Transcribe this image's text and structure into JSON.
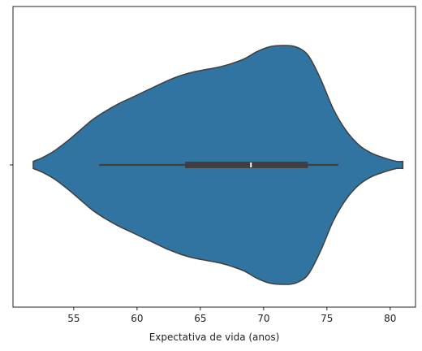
{
  "chart_data": {
    "type": "violin",
    "orientation": "horizontal",
    "title": "",
    "xlabel": "Expectativa de vida (anos)",
    "ylabel": "",
    "xlim": [
      50.2,
      82.0
    ],
    "xticks": [
      55,
      60,
      65,
      70,
      75,
      80
    ],
    "xtick_labels": [
      "55",
      "60",
      "65",
      "70",
      "75",
      "80"
    ],
    "ytick_labels": [
      ""
    ],
    "grid": false,
    "legend": "none",
    "colors": {
      "violin_fill": "#3274a1",
      "violin_edge": "#3f3f3f",
      "box": "#3f3f3f",
      "median": "#ffffff"
    },
    "density_profile": {
      "x": [
        51.8,
        52.5,
        53.5,
        54.5,
        55.5,
        56.5,
        57.5,
        58.5,
        59.5,
        60.5,
        61.5,
        62.5,
        63.5,
        64.5,
        65.5,
        66.5,
        67.5,
        68.5,
        69.5,
        70.5,
        71.5,
        72.5,
        73.5,
        74.5,
        75.5,
        76.5,
        77.5,
        78.5,
        79.5,
        80.5,
        81.0
      ],
      "relative_width": [
        0.03,
        0.06,
        0.12,
        0.2,
        0.29,
        0.38,
        0.45,
        0.51,
        0.56,
        0.61,
        0.66,
        0.71,
        0.75,
        0.78,
        0.8,
        0.82,
        0.85,
        0.89,
        0.95,
        0.99,
        1.0,
        0.99,
        0.92,
        0.72,
        0.47,
        0.29,
        0.17,
        0.1,
        0.06,
        0.03,
        0.03
      ]
    },
    "box": {
      "whisker_low": 57.0,
      "q1": 63.8,
      "median": 69.0,
      "q3": 73.5,
      "whisker_high": 75.9
    }
  }
}
